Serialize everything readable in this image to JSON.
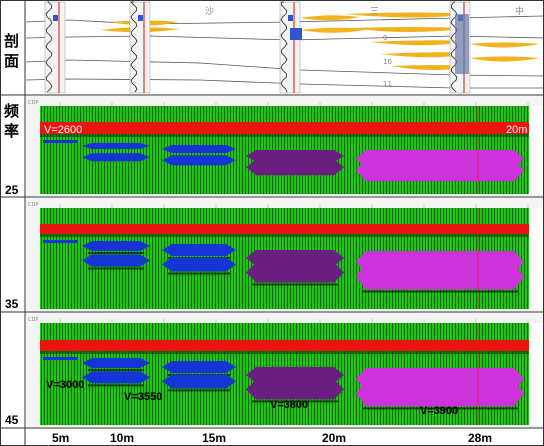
{
  "row_labels": {
    "section_chars": [
      "剖",
      "面"
    ],
    "frequency_chars": [
      "频",
      "率"
    ]
  },
  "frequencies": [
    "25",
    "35",
    "45"
  ],
  "section_annotations": [
    "沙",
    "三",
    "中",
    "9",
    "10",
    "11"
  ],
  "panel_labels": {
    "velocity_top": "V=2600",
    "scale_top": "20m",
    "velocities_bottom": [
      "V=3000",
      "V=3550",
      "V=3800",
      "V=3900"
    ]
  },
  "panel_axis_tag": "CDP",
  "thickness_labels": [
    "5m",
    "10m",
    "15m",
    "20m",
    "28m"
  ],
  "colors": {
    "trace_green": "#22c417",
    "red_layer": "#e8160f",
    "blue_wedge": "#1535d6",
    "purple_wedge": "#6a1f82",
    "magenta_wedge": "#cc33dd",
    "sand_yellow": "#f2b21e"
  }
}
